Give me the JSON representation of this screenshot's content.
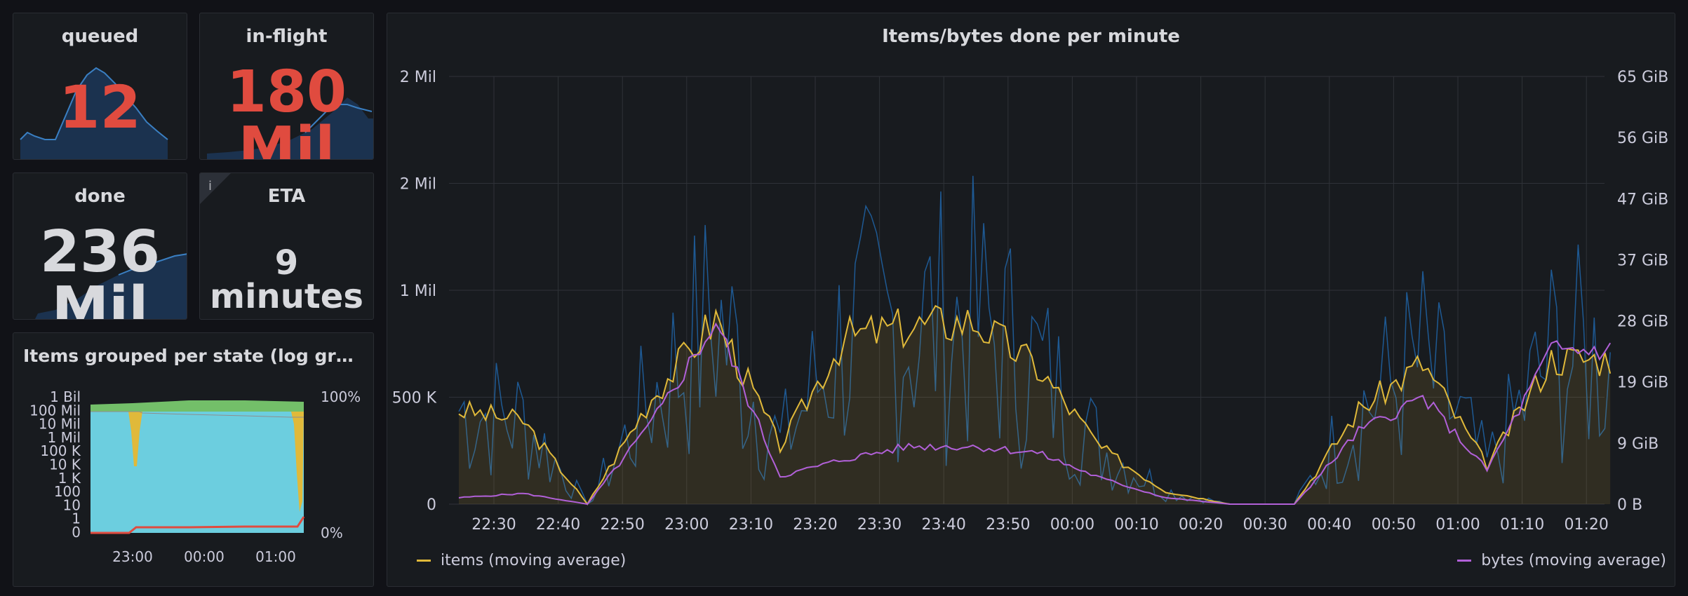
{
  "panels": {
    "queued": {
      "title": "queued",
      "value": "12"
    },
    "inflight": {
      "title": "in-flight",
      "value_line1": "180",
      "value_line2": "Mil"
    },
    "done": {
      "title": "done",
      "value_line1": "236",
      "value_line2": "Mil"
    },
    "eta": {
      "title": "ETA",
      "value": "9 minutes",
      "info_icon": "i"
    },
    "states": {
      "title": "Items grouped per state (log gra...",
      "y_ticks_left": [
        "1 Bil",
        "100 Mil",
        "10 Mil",
        "1 Mil",
        "100 K",
        "10 K",
        "1 K",
        "100",
        "10",
        "1",
        "0"
      ],
      "y_ticks_right": [
        "100%",
        "0%"
      ],
      "x_ticks": [
        "23:00",
        "00:00",
        "01:00"
      ]
    },
    "main": {
      "title": "Items/bytes done per minute"
    }
  },
  "colors": {
    "items": "#e0b93a",
    "bytes": "#b160d8",
    "raw": "#1f60a0",
    "accent_red": "#e04b3f",
    "cyan": "#6ccedf",
    "green": "#73bf69"
  },
  "chart_data": [
    {
      "type": "line",
      "title": "Items/bytes done per minute",
      "x": [
        "22:30",
        "22:40",
        "22:50",
        "23:00",
        "23:10",
        "23:20",
        "23:30",
        "23:40",
        "23:50",
        "00:00",
        "00:10",
        "00:20",
        "00:30",
        "00:40",
        "00:50",
        "01:00",
        "01:10",
        "01:20"
      ],
      "y_left_ticks": [
        "0",
        "500 K",
        "1 Mil",
        "2 Mil",
        "2 Mil"
      ],
      "y_right_ticks": [
        "0 B",
        "9 GiB",
        "19 GiB",
        "28 GiB",
        "37 GiB",
        "47 GiB",
        "56 GiB",
        "65 GiB"
      ],
      "ylim": [
        0,
        2000000
      ],
      "legend": [
        "items (moving average)",
        "bytes (moving average)"
      ],
      "series": [
        {
          "name": "items (moving average)",
          "color": "#e0b93a",
          "values": [
            440000,
            390000,
            0,
            500000,
            870000,
            270000,
            780000,
            830000,
            860000,
            640000,
            260000,
            60000,
            0,
            0,
            440000,
            660000,
            180000,
            680000
          ]
        },
        {
          "name": "bytes (moving average)",
          "color": "#b160d8",
          "values": [
            30000,
            50000,
            0,
            380000,
            850000,
            130000,
            210000,
            270000,
            270000,
            240000,
            120000,
            30000,
            0,
            0,
            340000,
            500000,
            160000,
            720000
          ]
        }
      ]
    },
    {
      "type": "area",
      "title": "Items grouped per state (log gra...",
      "x": [
        "23:00",
        "00:00",
        "01:00"
      ],
      "y_left_ticks": [
        "1 Bil",
        "100 Mil",
        "10 Mil",
        "1 Mil",
        "100 K",
        "10 K",
        "1 K",
        "100",
        "10",
        "1",
        "0"
      ],
      "y_right_ticks": [
        "100%",
        "0%"
      ]
    }
  ]
}
